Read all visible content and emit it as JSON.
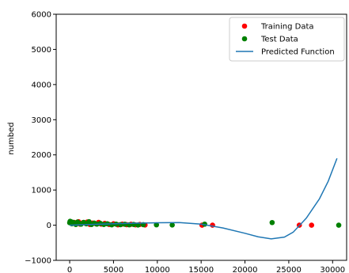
{
  "chart_data": {
    "type": "scatter",
    "title": "",
    "xlabel": "",
    "ylabel": "numbed",
    "xlim": [
      -1540,
      31600
    ],
    "ylim": [
      -1000,
      6000
    ],
    "xticks": [
      0,
      5000,
      10000,
      15000,
      20000,
      25000,
      30000
    ],
    "yticks": [
      -1000,
      0,
      1000,
      2000,
      3000,
      4000,
      5000,
      6000
    ],
    "legend_position": "top-right",
    "colors": {
      "training": "#ff0000",
      "test": "#008000",
      "predicted": "#1f77b4",
      "axis": "#000000"
    },
    "series": [
      {
        "name": "Training Data",
        "kind": "scatter",
        "color": "#ff0000",
        "points": [
          [
            100,
            90
          ],
          [
            300,
            60
          ],
          [
            500,
            80
          ],
          [
            800,
            40
          ],
          [
            1000,
            100
          ],
          [
            1200,
            30
          ],
          [
            1500,
            70
          ],
          [
            1800,
            50
          ],
          [
            2000,
            90
          ],
          [
            2300,
            20
          ],
          [
            2600,
            60
          ],
          [
            3000,
            40
          ],
          [
            3300,
            80
          ],
          [
            3600,
            30
          ],
          [
            4000,
            50
          ],
          [
            4500,
            20
          ],
          [
            5000,
            40
          ],
          [
            5500,
            10
          ],
          [
            6000,
            30
          ],
          [
            6500,
            15
          ],
          [
            7000,
            25
          ],
          [
            7500,
            10
          ],
          [
            8000,
            20
          ],
          [
            8600,
            5
          ],
          [
            15100,
            0
          ],
          [
            16300,
            0
          ],
          [
            26200,
            0
          ],
          [
            27600,
            0
          ]
        ]
      },
      {
        "name": "Test Data",
        "kind": "scatter",
        "color": "#008000",
        "points": [
          [
            0,
            70
          ],
          [
            50,
            110
          ],
          [
            150,
            100
          ],
          [
            250,
            40
          ],
          [
            400,
            80
          ],
          [
            600,
            60
          ],
          [
            700,
            20
          ],
          [
            900,
            90
          ],
          [
            1100,
            50
          ],
          [
            1300,
            30
          ],
          [
            1600,
            80
          ],
          [
            1900,
            40
          ],
          [
            2200,
            100
          ],
          [
            2500,
            20
          ],
          [
            2800,
            60
          ],
          [
            3100,
            30
          ],
          [
            3500,
            50
          ],
          [
            3900,
            20
          ],
          [
            4300,
            40
          ],
          [
            4800,
            10
          ],
          [
            5300,
            30
          ],
          [
            5800,
            15
          ],
          [
            6300,
            25
          ],
          [
            6800,
            10
          ],
          [
            7300,
            20
          ],
          [
            7800,
            5
          ],
          [
            8400,
            15
          ],
          [
            9900,
            10
          ],
          [
            11700,
            5
          ],
          [
            15400,
            30
          ],
          [
            23100,
            75
          ],
          [
            30700,
            0
          ]
        ]
      },
      {
        "name": "Predicted Function",
        "kind": "line",
        "color": "#1f77b4",
        "points": [
          [
            0,
            0
          ],
          [
            2500,
            20
          ],
          [
            5000,
            40
          ],
          [
            7500,
            55
          ],
          [
            10000,
            70
          ],
          [
            12500,
            75
          ],
          [
            15000,
            30
          ],
          [
            17500,
            -80
          ],
          [
            20000,
            -230
          ],
          [
            21500,
            -330
          ],
          [
            23000,
            -390
          ],
          [
            24500,
            -340
          ],
          [
            25500,
            -200
          ],
          [
            27000,
            200
          ],
          [
            28500,
            750
          ],
          [
            29500,
            1250
          ],
          [
            30500,
            1900
          ]
        ]
      }
    ]
  }
}
